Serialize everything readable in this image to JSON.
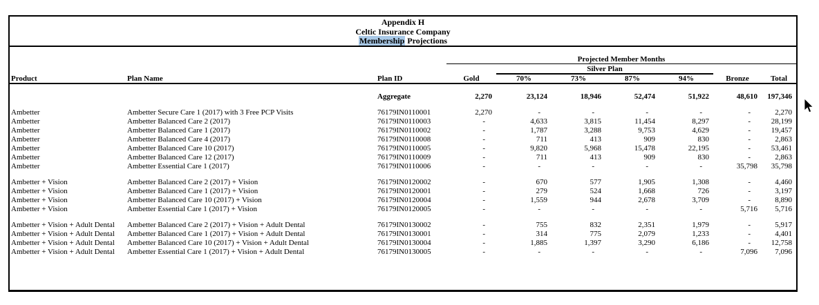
{
  "page": {
    "background": "#ffffff",
    "frame_border_color": "#000000",
    "highlight_color": "#a9c9e7"
  },
  "title": {
    "line1": "Appendix H",
    "line2": "Celtic Insurance Company",
    "line3_highlight": "Membership",
    "line3_rest": " Projections"
  },
  "header": {
    "group1": "Projected Member Months",
    "group2": "Silver Plan",
    "columns": [
      "Product",
      "Plan Name",
      "Plan ID",
      "Gold",
      "70%",
      "73%",
      "87%",
      "94%",
      "Bronze",
      "Total"
    ]
  },
  "aggregate": {
    "label": "Aggregate",
    "values": [
      "2,270",
      "23,124",
      "18,946",
      "52,474",
      "51,922",
      "48,610",
      "197,346"
    ]
  },
  "groups": [
    {
      "rows": [
        {
          "product": "Ambetter",
          "plan_name": "Ambetter Secure Care 1 (2017) with 3 Free PCP Visits",
          "plan_id": "76179IN0110001",
          "values": [
            "2,270",
            "-",
            "-",
            "-",
            "-",
            "-",
            "2,270"
          ]
        },
        {
          "product": "Ambetter",
          "plan_name": "Ambetter Balanced Care 2 (2017)",
          "plan_id": "76179IN0110003",
          "values": [
            "-",
            "4,633",
            "3,815",
            "11,454",
            "8,297",
            "-",
            "28,199"
          ]
        },
        {
          "product": "Ambetter",
          "plan_name": "Ambetter Balanced Care 1 (2017)",
          "plan_id": "76179IN0110002",
          "values": [
            "-",
            "1,787",
            "3,288",
            "9,753",
            "4,629",
            "-",
            "19,457"
          ]
        },
        {
          "product": "Ambetter",
          "plan_name": "Ambetter Balanced Care 4 (2017)",
          "plan_id": "76179IN0110008",
          "values": [
            "-",
            "711",
            "413",
            "909",
            "830",
            "-",
            "2,863"
          ]
        },
        {
          "product": "Ambetter",
          "plan_name": "Ambetter Balanced Care 10 (2017)",
          "plan_id": "76179IN0110005",
          "values": [
            "-",
            "9,820",
            "5,968",
            "15,478",
            "22,195",
            "-",
            "53,461"
          ]
        },
        {
          "product": "Ambetter",
          "plan_name": "Ambetter Balanced Care 12 (2017)",
          "plan_id": "76179IN0110009",
          "values": [
            "-",
            "711",
            "413",
            "909",
            "830",
            "-",
            "2,863"
          ]
        },
        {
          "product": "Ambetter",
          "plan_name": "Ambetter Essential Care 1 (2017)",
          "plan_id": "76179IN0110006",
          "values": [
            "-",
            "-",
            "-",
            "-",
            "-",
            "35,798",
            "35,798"
          ]
        }
      ]
    },
    {
      "rows": [
        {
          "product": "Ambetter + Vision",
          "plan_name": "Ambetter Balanced Care 2 (2017) + Vision",
          "plan_id": "76179IN0120002",
          "values": [
            "-",
            "670",
            "577",
            "1,905",
            "1,308",
            "-",
            "4,460"
          ]
        },
        {
          "product": "Ambetter + Vision",
          "plan_name": "Ambetter Balanced Care 1 (2017) + Vision",
          "plan_id": "76179IN0120001",
          "values": [
            "-",
            "279",
            "524",
            "1,668",
            "726",
            "-",
            "3,197"
          ]
        },
        {
          "product": "Ambetter + Vision",
          "plan_name": "Ambetter Balanced Care 10 (2017) + Vision",
          "plan_id": "76179IN0120004",
          "values": [
            "-",
            "1,559",
            "944",
            "2,678",
            "3,709",
            "-",
            "8,890"
          ]
        },
        {
          "product": "Ambetter + Vision",
          "plan_name": "Ambetter Essential Care 1 (2017) + Vision",
          "plan_id": "76179IN0120005",
          "values": [
            "-",
            "-",
            "-",
            "-",
            "-",
            "5,716",
            "5,716"
          ]
        }
      ]
    },
    {
      "rows": [
        {
          "product": "Ambetter + Vision + Adult Dental",
          "plan_name": "Ambetter Balanced Care 2 (2017) + Vision + Adult Dental",
          "plan_id": "76179IN0130002",
          "values": [
            "-",
            "755",
            "832",
            "2,351",
            "1,979",
            "-",
            "5,917"
          ]
        },
        {
          "product": "Ambetter + Vision + Adult Dental",
          "plan_name": "Ambetter Balanced Care 1 (2017) + Vision + Adult Dental",
          "plan_id": "76179IN0130001",
          "values": [
            "-",
            "314",
            "775",
            "2,079",
            "1,233",
            "-",
            "4,401"
          ]
        },
        {
          "product": "Ambetter + Vision + Adult Dental",
          "plan_name": "Ambetter Balanced Care 10 (2017) + Vision + Adult Dental",
          "plan_id": "76179IN0130004",
          "values": [
            "-",
            "1,885",
            "1,397",
            "3,290",
            "6,186",
            "-",
            "12,758"
          ]
        },
        {
          "product": "Ambetter + Vision + Adult Dental",
          "plan_name": "Ambetter Essential Care 1 (2017) + Vision + Adult Dental",
          "plan_id": "76179IN0130005",
          "values": [
            "-",
            "-",
            "-",
            "-",
            "-",
            "7,096",
            "7,096"
          ]
        }
      ]
    }
  ],
  "cursor": {
    "type": "arrow"
  }
}
